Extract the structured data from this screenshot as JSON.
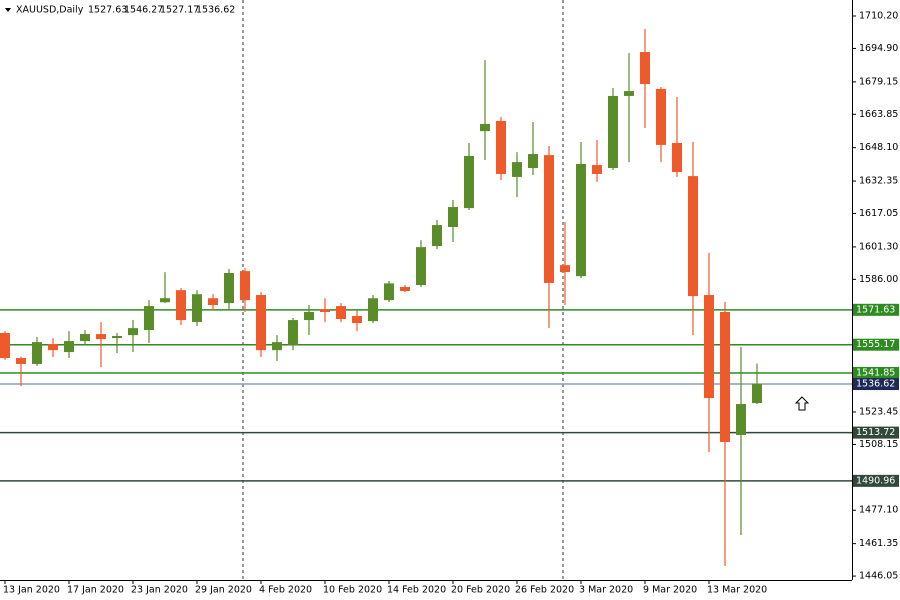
{
  "chart_data": {
    "type": "candlestick",
    "symbol": "XAUUSD,Daily",
    "up_color": "#5b8c2a",
    "down_color": "#ef5a2a",
    "categories": [
      "13 Jan 2020",
      null,
      null,
      null,
      "17 Jan 2020",
      null,
      null,
      null,
      "23 Jan 2020",
      null,
      null,
      null,
      "29 Jan 2020",
      null,
      null,
      null,
      "4 Feb 2020",
      null,
      null,
      null,
      "10 Feb 2020",
      null,
      null,
      null,
      "14 Feb 2020",
      null,
      null,
      null,
      "20 Feb 2020",
      null,
      null,
      null,
      "26 Feb 2020",
      null,
      null,
      null,
      "3 Mar 2020",
      null,
      null,
      null,
      "9 Mar 2020",
      null,
      null,
      null,
      "13 Mar 2020",
      null,
      null,
      null
    ],
    "open": [
      1560.7,
      1548.9,
      1546.1,
      1555.5,
      1551.7,
      1556.9,
      1560.2,
      1558.3,
      1559.7,
      1562.1,
      1575.2,
      1580.9,
      1565.9,
      1577.1,
      1574.8,
      1589.9,
      1578.6,
      1552.6,
      1555.0,
      1566.8,
      1571.9,
      1573.4,
      1568.7,
      1566.3,
      1576.2,
      1582.4,
      1583.3,
      1601.7,
      1610.7,
      1619.6,
      1655.9,
      1660.7,
      1634.3,
      1638.5,
      1644.6,
      1592.7,
      1587.5,
      1639.9,
      1638.5,
      1672.5,
      1693.2,
      1675.8,
      1650.3,
      1634.7,
      1578.6,
      1570.6,
      1512.6,
      1527.63
    ],
    "high": [
      1561.5,
      1549.5,
      1558.8,
      1558.3,
      1561.6,
      1562.1,
      1565.9,
      1560.7,
      1566.8,
      1576.2,
      1589.4,
      1581.9,
      1580.9,
      1579.0,
      1590.9,
      1591.3,
      1580.0,
      1559.7,
      1567.8,
      1573.9,
      1577.1,
      1574.8,
      1571.5,
      1578.6,
      1585.2,
      1583.3,
      1604.5,
      1614.0,
      1623.4,
      1650.3,
      1689.4,
      1662.6,
      1646.0,
      1660.2,
      1648.9,
      1613.0,
      1650.8,
      1651.7,
      1676.2,
      1692.7,
      1704.1,
      1676.7,
      1672.0,
      1650.8,
      1598.4,
      1575.3,
      1554.1,
      1546.27
    ],
    "low": [
      1548.0,
      1535.7,
      1545.2,
      1549.3,
      1548.9,
      1555.0,
      1544.6,
      1551.2,
      1551.7,
      1556.0,
      1574.8,
      1564.4,
      1564.0,
      1571.5,
      1571.5,
      1570.6,
      1549.3,
      1547.5,
      1552.6,
      1559.7,
      1565.9,
      1565.9,
      1561.6,
      1565.4,
      1575.3,
      1580.0,
      1582.4,
      1600.3,
      1603.6,
      1618.7,
      1642.3,
      1632.8,
      1624.8,
      1635.2,
      1563.0,
      1573.9,
      1586.6,
      1631.9,
      1637.6,
      1641.3,
      1657.4,
      1641.3,
      1634.3,
      1559.7,
      1504.5,
      1450.8,
      1465.4,
      1527.17
    ],
    "close": [
      1548.9,
      1546.1,
      1556.4,
      1552.6,
      1556.9,
      1560.2,
      1557.8,
      1559.3,
      1563.0,
      1573.4,
      1577.1,
      1566.8,
      1579.0,
      1573.9,
      1589.0,
      1576.2,
      1552.6,
      1556.4,
      1566.8,
      1570.6,
      1570.6,
      1567.3,
      1565.4,
      1577.1,
      1584.1,
      1580.5,
      1601.2,
      1611.6,
      1620.1,
      1644.2,
      1659.3,
      1635.7,
      1641.3,
      1645.1,
      1584.3,
      1589.4,
      1640.4,
      1635.7,
      1672.5,
      1674.8,
      1678.1,
      1649.4,
      1636.6,
      1578.1,
      1530.0,
      1509.3,
      1527.2,
      1536.62
    ],
    "ylim": [
      1444.2,
      1717.75
    ],
    "yticks": [
      {
        "value": 1446.05,
        "label": "1446.05"
      },
      {
        "value": 1461.35,
        "label": "1461.35"
      },
      {
        "value": 1477.1,
        "label": "1477.10"
      },
      {
        "value": 1508.15,
        "label": "1508.15"
      },
      {
        "value": 1523.45,
        "label": "1523.45"
      },
      {
        "value": 1586.0,
        "label": "1586.00"
      },
      {
        "value": 1601.3,
        "label": "1601.30"
      },
      {
        "value": 1617.05,
        "label": "1617.05"
      },
      {
        "value": 1632.35,
        "label": "1632.35"
      },
      {
        "value": 1648.1,
        "label": "1648.10"
      },
      {
        "value": 1663.85,
        "label": "1663.85"
      },
      {
        "value": 1679.15,
        "label": "1679.15"
      },
      {
        "value": 1694.9,
        "label": "1694.90"
      },
      {
        "value": 1710.2,
        "label": "1710.20"
      }
    ],
    "levels": [
      {
        "value": 1571.63,
        "label": "1571.63",
        "color": "#2e8b22"
      },
      {
        "value": 1555.17,
        "label": "1555.17",
        "color": "#2e8b22"
      },
      {
        "value": 1541.85,
        "label": "1541.85",
        "color": "#2e8b22"
      },
      {
        "value": 1513.72,
        "label": "1513.72",
        "color": "#2f4a3a"
      },
      {
        "value": 1490.96,
        "label": "1490.96",
        "color": "#2f4a3a"
      }
    ],
    "last_price": {
      "value": 1536.62,
      "label": "1536.62",
      "color": "#1e2a5a"
    }
  }
}
